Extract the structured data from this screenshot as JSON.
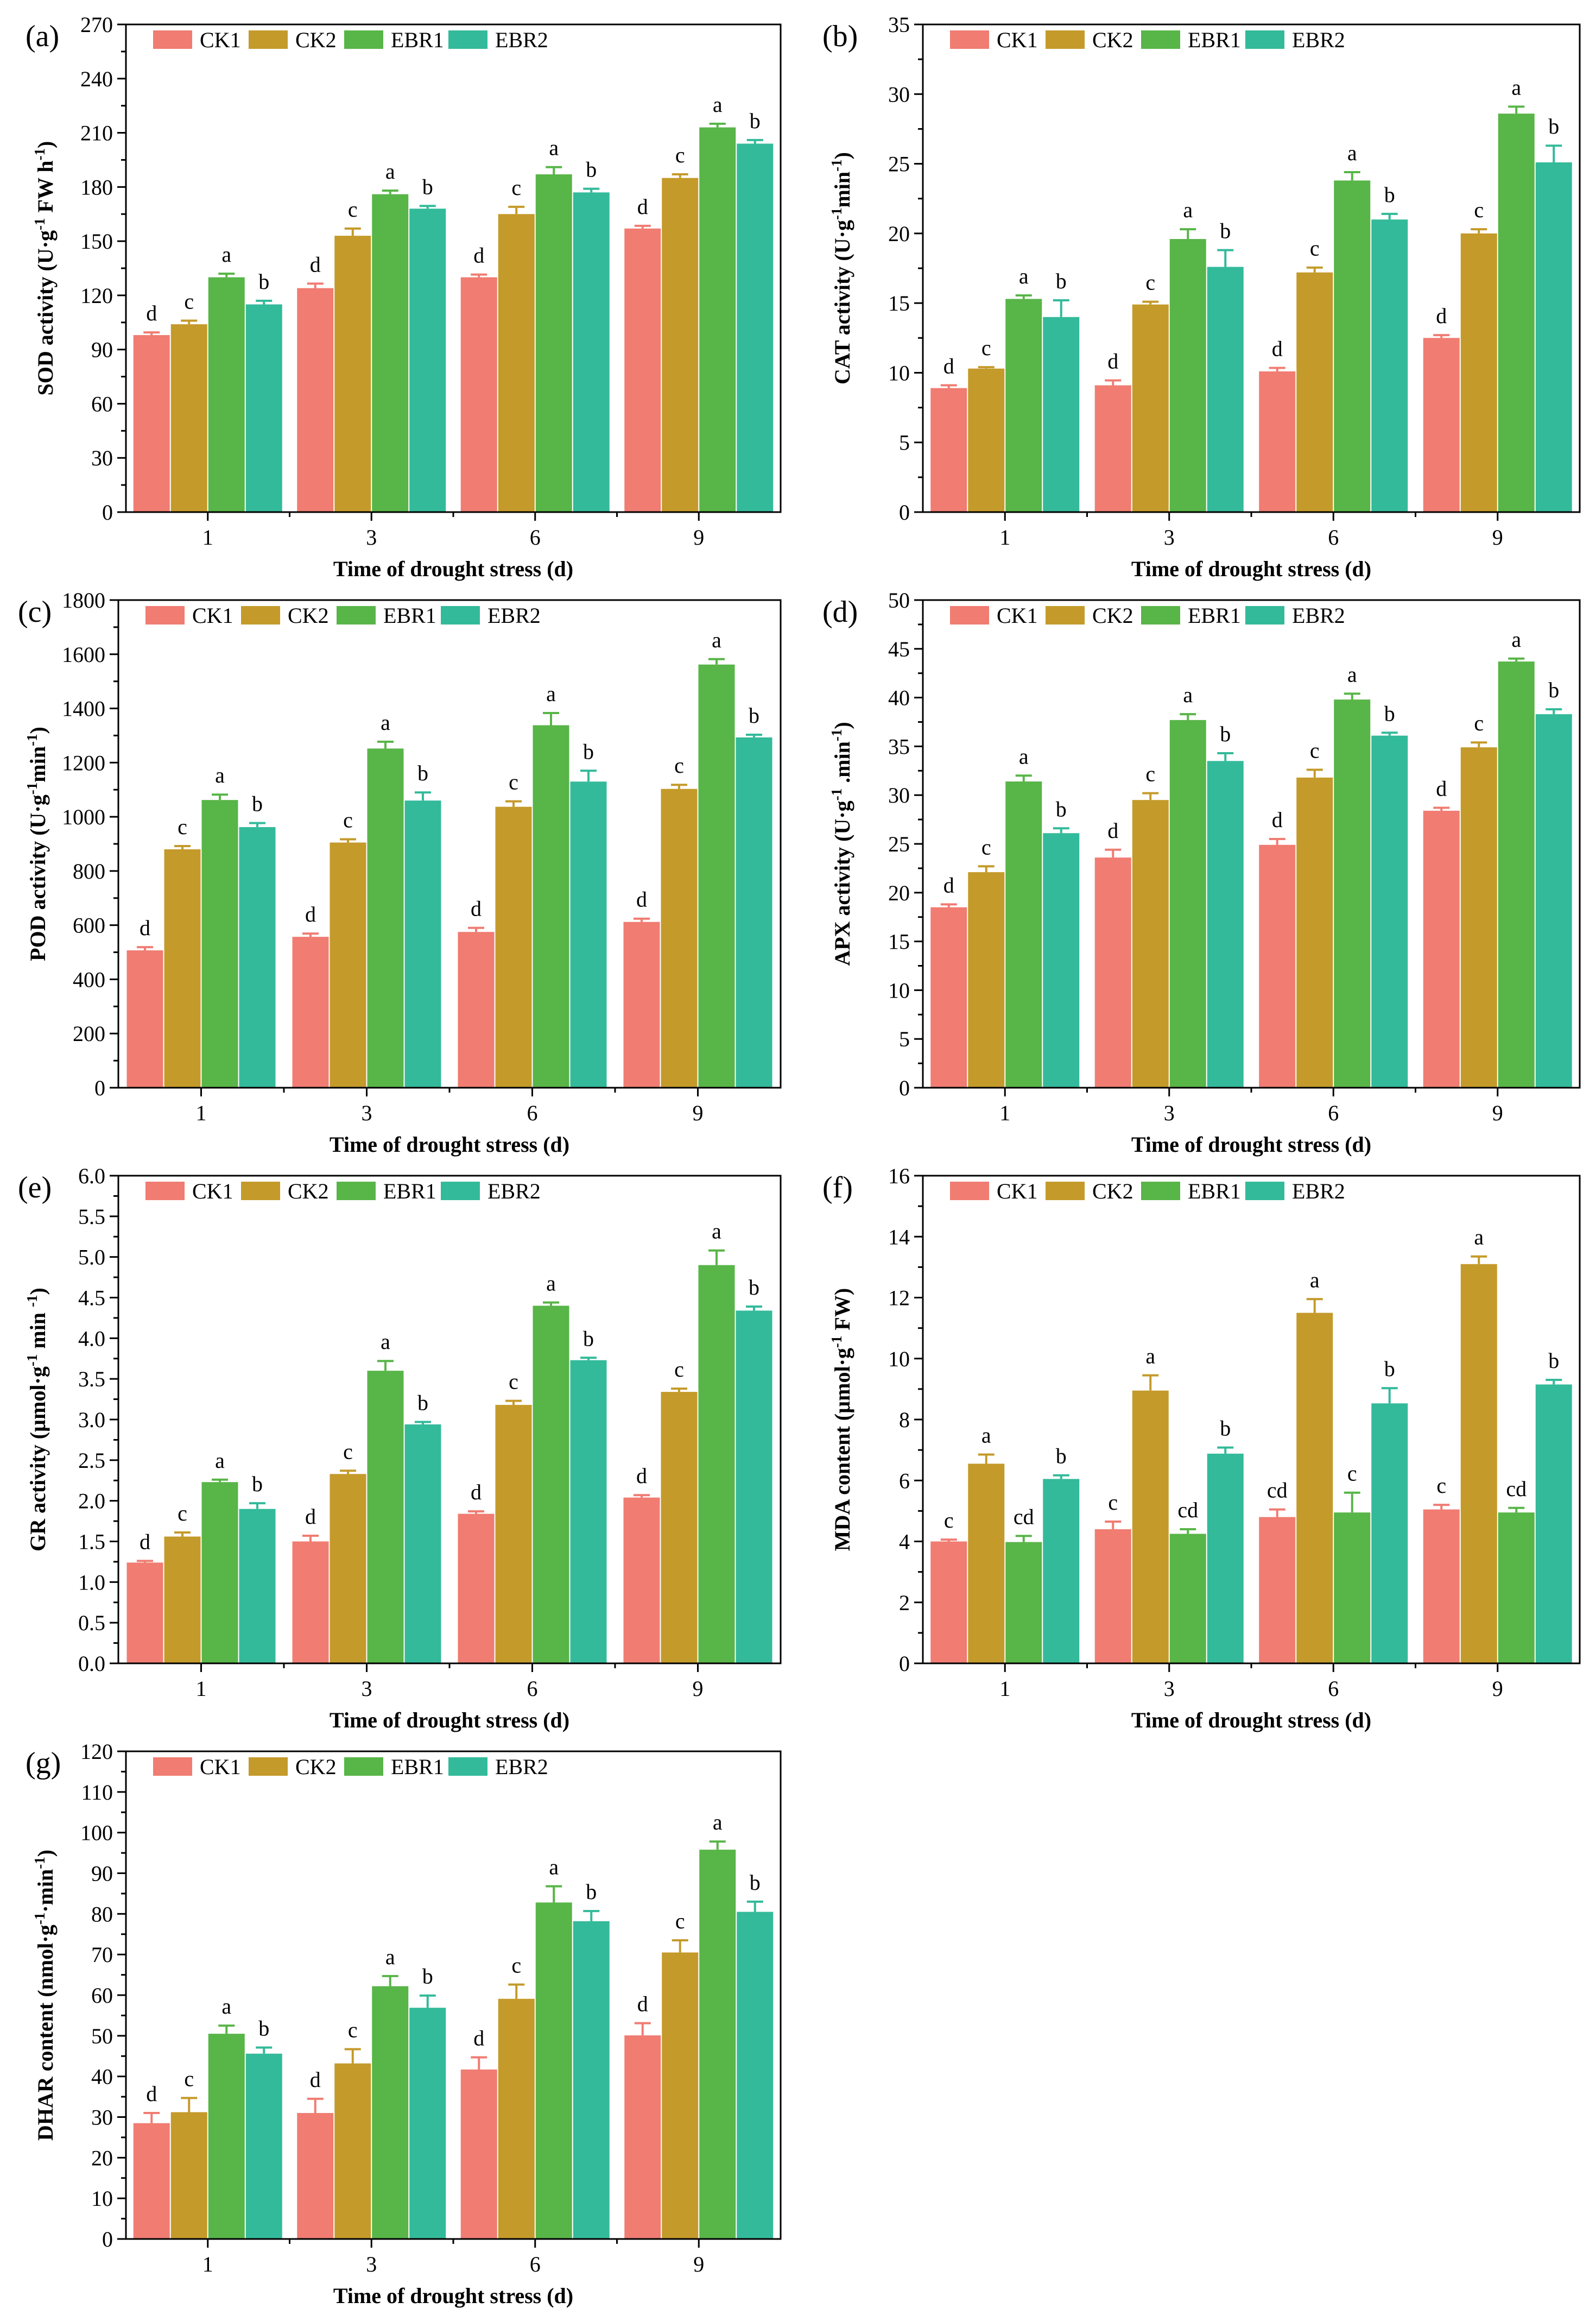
{
  "figure": {
    "series_names": [
      "CK1",
      "CK2",
      "EBR1",
      "EBR2"
    ],
    "colors": [
      "#F07C72",
      "#C49A2A",
      "#58B548",
      "#33BA9A"
    ],
    "error_color": "#333333",
    "letter_color": "#000000"
  },
  "chart_data": [
    {
      "id": "a",
      "type": "bar",
      "panel_label": "(a)",
      "categories": [
        "1",
        "3",
        "6",
        "9"
      ],
      "xlabel": "Time of drought stress (d)",
      "ylabel_parts": [
        {
          "t": "SOD activity (U·g"
        },
        {
          "t": "-1",
          "sup": true
        },
        {
          "t": " FW  h"
        },
        {
          "t": "-1",
          "sup": true
        },
        {
          "t": ")"
        }
      ],
      "ylim": [
        0,
        270
      ],
      "yticks": [
        0,
        30,
        60,
        90,
        120,
        150,
        180,
        210,
        240,
        270
      ],
      "series": [
        {
          "name": "CK1",
          "values": [
            98,
            124,
            130,
            157
          ],
          "errors": [
            1.5,
            2.5,
            1.5,
            1.5
          ],
          "letters": [
            "d",
            "d",
            "d",
            "d"
          ]
        },
        {
          "name": "CK2",
          "values": [
            104,
            153,
            165,
            185
          ],
          "errors": [
            2,
            4,
            4,
            2
          ],
          "letters": [
            "c",
            "c",
            "c",
            "c"
          ]
        },
        {
          "name": "EBR1",
          "values": [
            130,
            176,
            187,
            213
          ],
          "errors": [
            2,
            2,
            4,
            2
          ],
          "letters": [
            "a",
            "a",
            "a",
            "a"
          ]
        },
        {
          "name": "EBR2",
          "values": [
            115,
            168,
            177,
            204
          ],
          "errors": [
            2,
            1.5,
            2,
            2
          ],
          "letters": [
            "b",
            "b",
            "b",
            "b"
          ]
        }
      ]
    },
    {
      "id": "b",
      "type": "bar",
      "panel_label": "(b)",
      "categories": [
        "1",
        "3",
        "6",
        "9"
      ],
      "xlabel": "Time of drought stress (d)",
      "ylabel_parts": [
        {
          "t": "CAT activity (U·g"
        },
        {
          "t": "-1",
          "sup": true
        },
        {
          "t": "min"
        },
        {
          "t": "-1",
          "sup": true
        },
        {
          "t": ")"
        }
      ],
      "ylim": [
        0,
        35
      ],
      "yticks": [
        0,
        5,
        10,
        15,
        20,
        25,
        30,
        35
      ],
      "series": [
        {
          "name": "CK1",
          "values": [
            8.9,
            9.1,
            10.1,
            12.5
          ],
          "errors": [
            0.2,
            0.35,
            0.25,
            0.2
          ],
          "letters": [
            "d",
            "d",
            "d",
            "d"
          ]
        },
        {
          "name": "CK2",
          "values": [
            10.3,
            14.9,
            17.2,
            20.0
          ],
          "errors": [
            0.1,
            0.2,
            0.35,
            0.3
          ],
          "letters": [
            "c",
            "c",
            "c",
            "c"
          ]
        },
        {
          "name": "EBR1",
          "values": [
            15.3,
            19.6,
            23.8,
            28.6
          ],
          "errors": [
            0.25,
            0.7,
            0.6,
            0.5
          ],
          "letters": [
            "a",
            "a",
            "a",
            "a"
          ]
        },
        {
          "name": "EBR2",
          "values": [
            14.0,
            17.6,
            21.0,
            25.1
          ],
          "errors": [
            1.2,
            1.2,
            0.4,
            1.2
          ],
          "letters": [
            "b",
            "b",
            "b",
            "b"
          ]
        }
      ]
    },
    {
      "id": "c",
      "type": "bar",
      "panel_label": "(c)",
      "categories": [
        "1",
        "3",
        "6",
        "9"
      ],
      "xlabel": "Time of drought stress (d)",
      "ylabel_parts": [
        {
          "t": "POD activity (U·g"
        },
        {
          "t": "-1",
          "sup": true
        },
        {
          "t": "min"
        },
        {
          "t": "-1",
          "sup": true
        },
        {
          "t": ")"
        }
      ],
      "ylim": [
        0,
        1800
      ],
      "yticks": [
        0,
        200,
        400,
        600,
        800,
        1000,
        1200,
        1400,
        1600,
        1800
      ],
      "series": [
        {
          "name": "CK1",
          "values": [
            507,
            557,
            575,
            612
          ],
          "errors": [
            12,
            12,
            15,
            12
          ],
          "letters": [
            "d",
            "d",
            "d",
            "d"
          ]
        },
        {
          "name": "CK2",
          "values": [
            880,
            905,
            1037,
            1103
          ],
          "errors": [
            12,
            12,
            20,
            15
          ],
          "letters": [
            "c",
            "c",
            "c",
            "c"
          ]
        },
        {
          "name": "EBR1",
          "values": [
            1062,
            1252,
            1338,
            1562
          ],
          "errors": [
            20,
            25,
            45,
            20
          ],
          "letters": [
            "a",
            "a",
            "a",
            "a"
          ]
        },
        {
          "name": "EBR2",
          "values": [
            962,
            1060,
            1130,
            1293
          ],
          "errors": [
            15,
            30,
            40,
            10
          ],
          "letters": [
            "b",
            "b",
            "b",
            "b"
          ]
        }
      ]
    },
    {
      "id": "d",
      "type": "bar",
      "panel_label": "(d)",
      "categories": [
        "1",
        "3",
        "6",
        "9"
      ],
      "xlabel": "Time of drought stress (d)",
      "ylabel_parts": [
        {
          "t": "APX activity (U·g"
        },
        {
          "t": "-1",
          "sup": true
        },
        {
          "t": " .min"
        },
        {
          "t": "-1",
          "sup": true
        },
        {
          "t": ")"
        }
      ],
      "ylim": [
        0,
        50
      ],
      "yticks": [
        0,
        5,
        10,
        15,
        20,
        25,
        30,
        35,
        40,
        45,
        50
      ],
      "series": [
        {
          "name": "CK1",
          "values": [
            18.5,
            23.6,
            24.9,
            28.4
          ],
          "errors": [
            0.3,
            0.8,
            0.6,
            0.3
          ],
          "letters": [
            "d",
            "d",
            "d",
            "d"
          ]
        },
        {
          "name": "CK2",
          "values": [
            22.1,
            29.5,
            31.8,
            34.9
          ],
          "errors": [
            0.6,
            0.7,
            0.8,
            0.5
          ],
          "letters": [
            "c",
            "c",
            "c",
            "c"
          ]
        },
        {
          "name": "EBR1",
          "values": [
            31.4,
            37.7,
            39.8,
            43.7
          ],
          "errors": [
            0.6,
            0.6,
            0.6,
            0.3
          ],
          "letters": [
            "a",
            "a",
            "a",
            "a"
          ]
        },
        {
          "name": "EBR2",
          "values": [
            26.1,
            33.5,
            36.1,
            38.3
          ],
          "errors": [
            0.5,
            0.8,
            0.3,
            0.5
          ],
          "letters": [
            "b",
            "b",
            "b",
            "b"
          ]
        }
      ]
    },
    {
      "id": "e",
      "type": "bar",
      "panel_label": "(e)",
      "categories": [
        "1",
        "3",
        "6",
        "9"
      ],
      "xlabel": "Time of drought stress (d)",
      "ylabel_parts": [
        {
          "t": "GR activity (µmol·g"
        },
        {
          "t": "-1",
          "sup": true
        },
        {
          "t": " min "
        },
        {
          "t": "-1",
          "sup": true
        },
        {
          "t": ")"
        }
      ],
      "ylim": [
        0,
        6.0
      ],
      "yticks": [
        0.0,
        0.5,
        1.0,
        1.5,
        2.0,
        2.5,
        3.0,
        3.5,
        4.0,
        4.5,
        5.0,
        5.5,
        6.0
      ],
      "series": [
        {
          "name": "CK1",
          "values": [
            1.24,
            1.5,
            1.84,
            2.04
          ],
          "errors": [
            0.02,
            0.07,
            0.03,
            0.03
          ],
          "letters": [
            "d",
            "d",
            "d",
            "d"
          ]
        },
        {
          "name": "CK2",
          "values": [
            1.56,
            2.33,
            3.18,
            3.34
          ],
          "errors": [
            0.05,
            0.04,
            0.05,
            0.04
          ],
          "letters": [
            "c",
            "c",
            "c",
            "c"
          ]
        },
        {
          "name": "EBR1",
          "values": [
            2.23,
            3.6,
            4.4,
            4.9
          ],
          "errors": [
            0.03,
            0.12,
            0.04,
            0.18
          ],
          "letters": [
            "a",
            "a",
            "a",
            "a"
          ]
        },
        {
          "name": "EBR2",
          "values": [
            1.9,
            2.94,
            3.73,
            4.34
          ],
          "errors": [
            0.07,
            0.03,
            0.03,
            0.05
          ],
          "letters": [
            "b",
            "b",
            "b",
            "b"
          ]
        }
      ]
    },
    {
      "id": "f",
      "type": "bar",
      "panel_label": "(f)",
      "categories": [
        "1",
        "3",
        "6",
        "9"
      ],
      "xlabel": "Time of drought stress (d)",
      "ylabel_parts": [
        {
          "t": "MDA content (µmol·g"
        },
        {
          "t": "-1",
          "sup": true
        },
        {
          "t": " FW)"
        }
      ],
      "ylim": [
        0,
        16
      ],
      "yticks": [
        0,
        2,
        4,
        6,
        8,
        10,
        12,
        14,
        16
      ],
      "series": [
        {
          "name": "CK1",
          "values": [
            4.0,
            4.4,
            4.8,
            5.05
          ],
          "errors": [
            0.06,
            0.25,
            0.25,
            0.15
          ],
          "letters": [
            "c",
            "c",
            "cd",
            "c"
          ]
        },
        {
          "name": "CK2",
          "values": [
            6.55,
            8.95,
            11.5,
            13.1
          ],
          "errors": [
            0.3,
            0.5,
            0.45,
            0.25
          ],
          "letters": [
            "a",
            "a",
            "a",
            "a"
          ]
        },
        {
          "name": "EBR1",
          "values": [
            3.98,
            4.25,
            4.95,
            4.95
          ],
          "errors": [
            0.2,
            0.15,
            0.65,
            0.15
          ],
          "letters": [
            "cd",
            "cd",
            "c",
            "cd"
          ]
        },
        {
          "name": "EBR2",
          "values": [
            6.05,
            6.88,
            8.53,
            9.15
          ],
          "errors": [
            0.12,
            0.2,
            0.5,
            0.15
          ],
          "letters": [
            "b",
            "b",
            "b",
            "b"
          ]
        }
      ]
    },
    {
      "id": "g",
      "type": "bar",
      "panel_label": "(g)",
      "categories": [
        "1",
        "3",
        "6",
        "9"
      ],
      "xlabel": "Time of drought stress (d)",
      "ylabel_parts": [
        {
          "t": "DHAR content (nmol·g"
        },
        {
          "t": "-1",
          "sup": true
        },
        {
          "t": "·min"
        },
        {
          "t": "-1",
          "sup": true
        },
        {
          "t": ")"
        }
      ],
      "ylim": [
        0,
        120
      ],
      "yticks": [
        0,
        10,
        20,
        30,
        40,
        50,
        60,
        70,
        80,
        90,
        100,
        110,
        120
      ],
      "series": [
        {
          "name": "CK1",
          "values": [
            28.5,
            31.0,
            41.7,
            50.1
          ],
          "errors": [
            2.5,
            3.5,
            3.0,
            3.0
          ],
          "letters": [
            "d",
            "d",
            "d",
            "d"
          ]
        },
        {
          "name": "CK2",
          "values": [
            31.2,
            43.2,
            59.1,
            70.5
          ],
          "errors": [
            3.5,
            3.5,
            3.5,
            3.0
          ],
          "letters": [
            "c",
            "c",
            "c",
            "c"
          ]
        },
        {
          "name": "EBR1",
          "values": [
            50.5,
            62.2,
            82.8,
            95.8
          ],
          "errors": [
            2.0,
            2.5,
            4.0,
            2.0
          ],
          "letters": [
            "a",
            "a",
            "a",
            "a"
          ]
        },
        {
          "name": "EBR2",
          "values": [
            45.6,
            56.9,
            78.2,
            80.5
          ],
          "errors": [
            1.5,
            3.0,
            2.5,
            2.5
          ],
          "letters": [
            "b",
            "b",
            "b",
            "b"
          ]
        }
      ]
    }
  ]
}
